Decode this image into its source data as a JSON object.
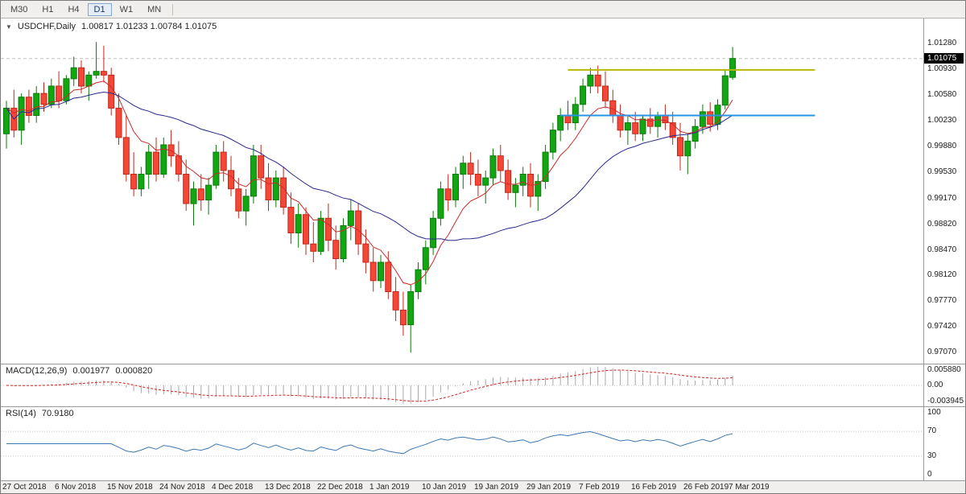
{
  "toolbar": {
    "timeframes": [
      {
        "label": "M30",
        "active": false
      },
      {
        "label": "H1",
        "active": false
      },
      {
        "label": "H4",
        "active": false
      },
      {
        "label": "D1",
        "active": true
      },
      {
        "label": "W1",
        "active": false
      },
      {
        "label": "MN",
        "active": false
      }
    ]
  },
  "header": {
    "marker": "▼",
    "symbol": "USDCHF,Daily",
    "ohlc": "1.00817 1.01233 1.00784 1.01075"
  },
  "chart_data": {
    "type": "candlestick",
    "symbol": "USDCHF",
    "timeframe": "Daily",
    "current_bar": {
      "open": 1.00817,
      "high": 1.01233,
      "low": 1.00784,
      "close": 1.01075
    },
    "bid_price": 1.01075,
    "bid_label": "1.01075",
    "ylim": [
      0.9692,
      1.0162
    ],
    "y_axis_ticks": [
      "1.01280",
      "1.00930",
      "1.00580",
      "1.00230",
      "0.99880",
      "0.99530",
      "0.99170",
      "0.98820",
      "0.98470",
      "0.98120",
      "0.97770",
      "0.97420",
      "0.97070"
    ],
    "x_ticks": [
      {
        "label": "27 Oct 2018",
        "bar": 0
      },
      {
        "label": "6 Nov 2018",
        "bar": 7
      },
      {
        "label": "15 Nov 2018",
        "bar": 14
      },
      {
        "label": "24 Nov 2018",
        "bar": 21
      },
      {
        "label": "4 Dec 2018",
        "bar": 28
      },
      {
        "label": "13 Dec 2018",
        "bar": 35
      },
      {
        "label": "22 Dec 2018",
        "bar": 42
      },
      {
        "label": "1 Jan 2019",
        "bar": 49
      },
      {
        "label": "10 Jan 2019",
        "bar": 56
      },
      {
        "label": "19 Jan 2019",
        "bar": 63
      },
      {
        "label": "29 Jan 2019",
        "bar": 70
      },
      {
        "label": "7 Feb 2019",
        "bar": 77
      },
      {
        "label": "16 Feb 2019",
        "bar": 84
      },
      {
        "label": "26 Feb 2019",
        "bar": 91
      },
      {
        "label": "7 Mar 2019",
        "bar": 97
      }
    ],
    "candles": [
      [
        1.0005,
        1.005,
        0.9985,
        1.004
      ],
      [
        1.004,
        1.0065,
        1.0,
        1.001
      ],
      [
        1.001,
        1.006,
        0.999,
        1.0055
      ],
      [
        1.0055,
        1.0065,
        1.002,
        1.003
      ],
      [
        1.003,
        1.007,
        1.002,
        1.006
      ],
      [
        1.006,
        1.0075,
        1.0035,
        1.0045
      ],
      [
        1.0045,
        1.008,
        1.004,
        1.007
      ],
      [
        1.007,
        1.009,
        1.004,
        1.005
      ],
      [
        1.005,
        1.0085,
        1.0045,
        1.008
      ],
      [
        1.008,
        1.011,
        1.007,
        1.0095
      ],
      [
        1.0095,
        1.0105,
        1.006,
        1.007
      ],
      [
        1.007,
        1.009,
        1.005,
        1.0085
      ],
      [
        1.0085,
        1.013,
        1.008,
        1.009
      ],
      [
        1.009,
        1.0125,
        1.0075,
        1.0085
      ],
      [
        1.0085,
        1.0095,
        1.003,
        1.004
      ],
      [
        1.004,
        1.006,
        0.999,
        1.0
      ],
      [
        1.0,
        1.003,
        0.994,
        0.995
      ],
      [
        0.995,
        0.998,
        0.992,
        0.993
      ],
      [
        0.993,
        0.996,
        0.992,
        0.995
      ],
      [
        0.995,
        0.999,
        0.993,
        0.998
      ],
      [
        0.998,
        1.0,
        0.994,
        0.995
      ],
      [
        0.995,
        1.0,
        0.9945,
        0.999
      ],
      [
        0.999,
        1.001,
        0.996,
        0.9975
      ],
      [
        0.9975,
        0.9995,
        0.994,
        0.995
      ],
      [
        0.995,
        0.997,
        0.99,
        0.991
      ],
      [
        0.991,
        0.994,
        0.988,
        0.993
      ],
      [
        0.993,
        0.995,
        0.99,
        0.9915
      ],
      [
        0.9915,
        0.9945,
        0.9895,
        0.9935
      ],
      [
        0.9935,
        0.999,
        0.993,
        0.998
      ],
      [
        0.998,
        0.9995,
        0.994,
        0.9955
      ],
      [
        0.9955,
        0.9975,
        0.992,
        0.993
      ],
      [
        0.993,
        0.9945,
        0.989,
        0.99
      ],
      [
        0.99,
        0.993,
        0.988,
        0.992
      ],
      [
        0.992,
        0.999,
        0.991,
        0.9975
      ],
      [
        0.9975,
        0.999,
        0.993,
        0.9945
      ],
      [
        0.9945,
        0.9965,
        0.99,
        0.9915
      ],
      [
        0.9915,
        0.9955,
        0.9905,
        0.9945
      ],
      [
        0.9945,
        0.996,
        0.9895,
        0.9905
      ],
      [
        0.9905,
        0.9925,
        0.9855,
        0.987
      ],
      [
        0.987,
        0.991,
        0.985,
        0.9895
      ],
      [
        0.9895,
        0.9905,
        0.984,
        0.9855
      ],
      [
        0.9855,
        0.9885,
        0.983,
        0.9845
      ],
      [
        0.9845,
        0.99,
        0.984,
        0.989
      ],
      [
        0.989,
        0.991,
        0.9845,
        0.986
      ],
      [
        0.986,
        0.988,
        0.982,
        0.9835
      ],
      [
        0.9835,
        0.989,
        0.983,
        0.988
      ],
      [
        0.988,
        0.9915,
        0.986,
        0.99
      ],
      [
        0.99,
        0.991,
        0.984,
        0.9855
      ],
      [
        0.9855,
        0.9875,
        0.9815,
        0.983
      ],
      [
        0.983,
        0.985,
        0.979,
        0.9805
      ],
      [
        0.9805,
        0.984,
        0.9795,
        0.983
      ],
      [
        0.983,
        0.9845,
        0.978,
        0.979
      ],
      [
        0.979,
        0.981,
        0.975,
        0.9765
      ],
      [
        0.9765,
        0.979,
        0.973,
        0.9745
      ],
      [
        0.9745,
        0.98,
        0.9707,
        0.979
      ],
      [
        0.979,
        0.983,
        0.978,
        0.982
      ],
      [
        0.982,
        0.986,
        0.98,
        0.985
      ],
      [
        0.985,
        0.99,
        0.984,
        0.989
      ],
      [
        0.989,
        0.994,
        0.988,
        0.993
      ],
      [
        0.993,
        0.995,
        0.99,
        0.9915
      ],
      [
        0.9915,
        0.996,
        0.9905,
        0.995
      ],
      [
        0.995,
        0.9975,
        0.993,
        0.9965
      ],
      [
        0.9965,
        0.998,
        0.9935,
        0.995
      ],
      [
        0.995,
        0.997,
        0.992,
        0.9935
      ],
      [
        0.9935,
        0.9955,
        0.991,
        0.9945
      ],
      [
        0.9945,
        0.9985,
        0.9935,
        0.9975
      ],
      [
        0.9975,
        0.999,
        0.994,
        0.9955
      ],
      [
        0.9955,
        0.997,
        0.9915,
        0.9925
      ],
      [
        0.9925,
        0.9945,
        0.9905,
        0.9935
      ],
      [
        0.9935,
        0.996,
        0.992,
        0.995
      ],
      [
        0.995,
        0.9965,
        0.9905,
        0.992
      ],
      [
        0.992,
        0.995,
        0.99,
        0.994
      ],
      [
        0.994,
        0.999,
        0.993,
        0.998
      ],
      [
        0.998,
        1.002,
        0.997,
        1.001
      ],
      [
        1.001,
        1.004,
        0.9995,
        1.003
      ],
      [
        1.003,
        1.005,
        1.001,
        1.002
      ],
      [
        1.002,
        1.0055,
        1.001,
        1.0045
      ],
      [
        1.0045,
        1.008,
        1.0035,
        1.007
      ],
      [
        1.007,
        1.0095,
        1.006,
        1.0085
      ],
      [
        1.0085,
        1.0098,
        1.006,
        1.007
      ],
      [
        1.007,
        1.009,
        1.004,
        1.005
      ],
      [
        1.005,
        1.0065,
        1.002,
        1.003
      ],
      [
        1.003,
        1.0045,
        1.0,
        1.001
      ],
      [
        1.001,
        1.003,
        0.999,
        1.002
      ],
      [
        1.002,
        1.0035,
        0.9995,
        1.0005
      ],
      [
        1.0005,
        1.003,
        0.9995,
        1.0025
      ],
      [
        1.0025,
        1.004,
        1.0005,
        1.0015
      ],
      [
        1.0015,
        1.0035,
        1.0,
        1.003
      ],
      [
        1.003,
        1.0045,
        1.001,
        1.002
      ],
      [
        1.002,
        1.0035,
        0.999,
        1.0
      ],
      [
        1.0,
        1.002,
        0.9955,
        0.9975
      ],
      [
        0.9975,
        1.0005,
        0.995,
        0.9995
      ],
      [
        0.9995,
        1.0025,
        0.9985,
        1.0015
      ],
      [
        1.0015,
        1.0045,
        1.0005,
        1.0035
      ],
      [
        1.0035,
        1.0048,
        1.0008,
        1.0018
      ],
      [
        1.0018,
        1.0052,
        1.001,
        1.0044
      ],
      [
        1.0044,
        1.0092,
        1.0038,
        1.0084
      ],
      [
        1.00817,
        1.01233,
        1.00784,
        1.01075
      ]
    ],
    "overlays": {
      "ma_fast": {
        "period": 8,
        "color": "#cc2a2a"
      },
      "ma_slow": {
        "period": 26,
        "color": "#28288c"
      }
    },
    "hlines": [
      {
        "price": 1.0092,
        "from_bar": 75,
        "to_bar": 108,
        "color": "#b5b800"
      },
      {
        "price": 1.003,
        "from_bar": 74,
        "to_bar": 108,
        "color": "#2994e6"
      }
    ],
    "macd": {
      "name": "MACD(12,26,9)",
      "fast": 12,
      "slow": 26,
      "signal": 9,
      "value": "0.001977",
      "signal_value": "0.000820",
      "axis_labels": [
        "0.005880",
        "0.00",
        "-0.003945"
      ]
    },
    "rsi": {
      "name": "RSI(14)",
      "period": 14,
      "value": "70.9180",
      "axis_labels": [
        "100",
        "70",
        "30",
        "0"
      ],
      "levels": [
        70,
        30
      ]
    },
    "colors": {
      "up": "#12a712",
      "up_stroke": "#0a7a0a",
      "down": "#f54738",
      "down_stroke": "#c3271a",
      "bid_line": "#c0c0c0",
      "macd_hist": "#a8a8a8",
      "macd_signal": "#d02020",
      "zero_line": "#c8c8c8",
      "rsi_line": "#3c78b4",
      "level_line": "#c8c8c8",
      "badge_bg": "#000000",
      "badge_text": "#ffffff"
    }
  }
}
